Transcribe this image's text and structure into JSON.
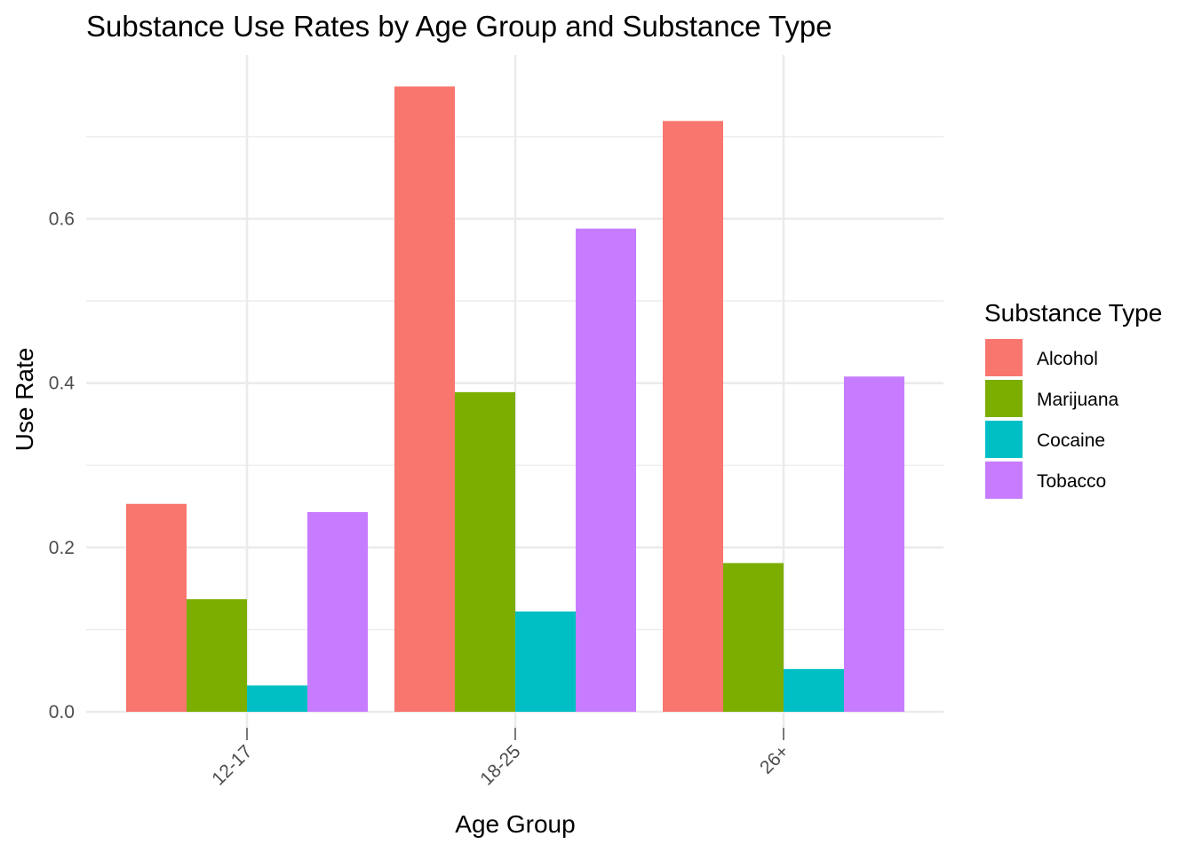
{
  "chart_data": {
    "type": "bar",
    "title": "Substance Use Rates by Age Group and Substance Type",
    "xlabel": "Age Group",
    "ylabel": "Use Rate",
    "categories": [
      "12-17",
      "18-25",
      "26+"
    ],
    "ylim": [
      0,
      0.8
    ],
    "y_ticks": [
      0.0,
      0.2,
      0.4,
      0.6
    ],
    "y_tick_labels": [
      "0.0",
      "0.2",
      "0.4",
      "0.6"
    ],
    "grid": true,
    "legend": {
      "title": "Substance Type",
      "position": "right"
    },
    "series": [
      {
        "name": "Alcohol",
        "color": "#F8766D",
        "values": [
          0.253,
          0.761,
          0.719
        ]
      },
      {
        "name": "Marijuana",
        "color": "#7CAE00",
        "values": [
          0.137,
          0.389,
          0.181
        ]
      },
      {
        "name": "Cocaine",
        "color": "#00BFC4",
        "values": [
          0.032,
          0.122,
          0.052
        ]
      },
      {
        "name": "Tobacco",
        "color": "#C77CFF",
        "values": [
          0.243,
          0.588,
          0.408
        ]
      }
    ]
  }
}
